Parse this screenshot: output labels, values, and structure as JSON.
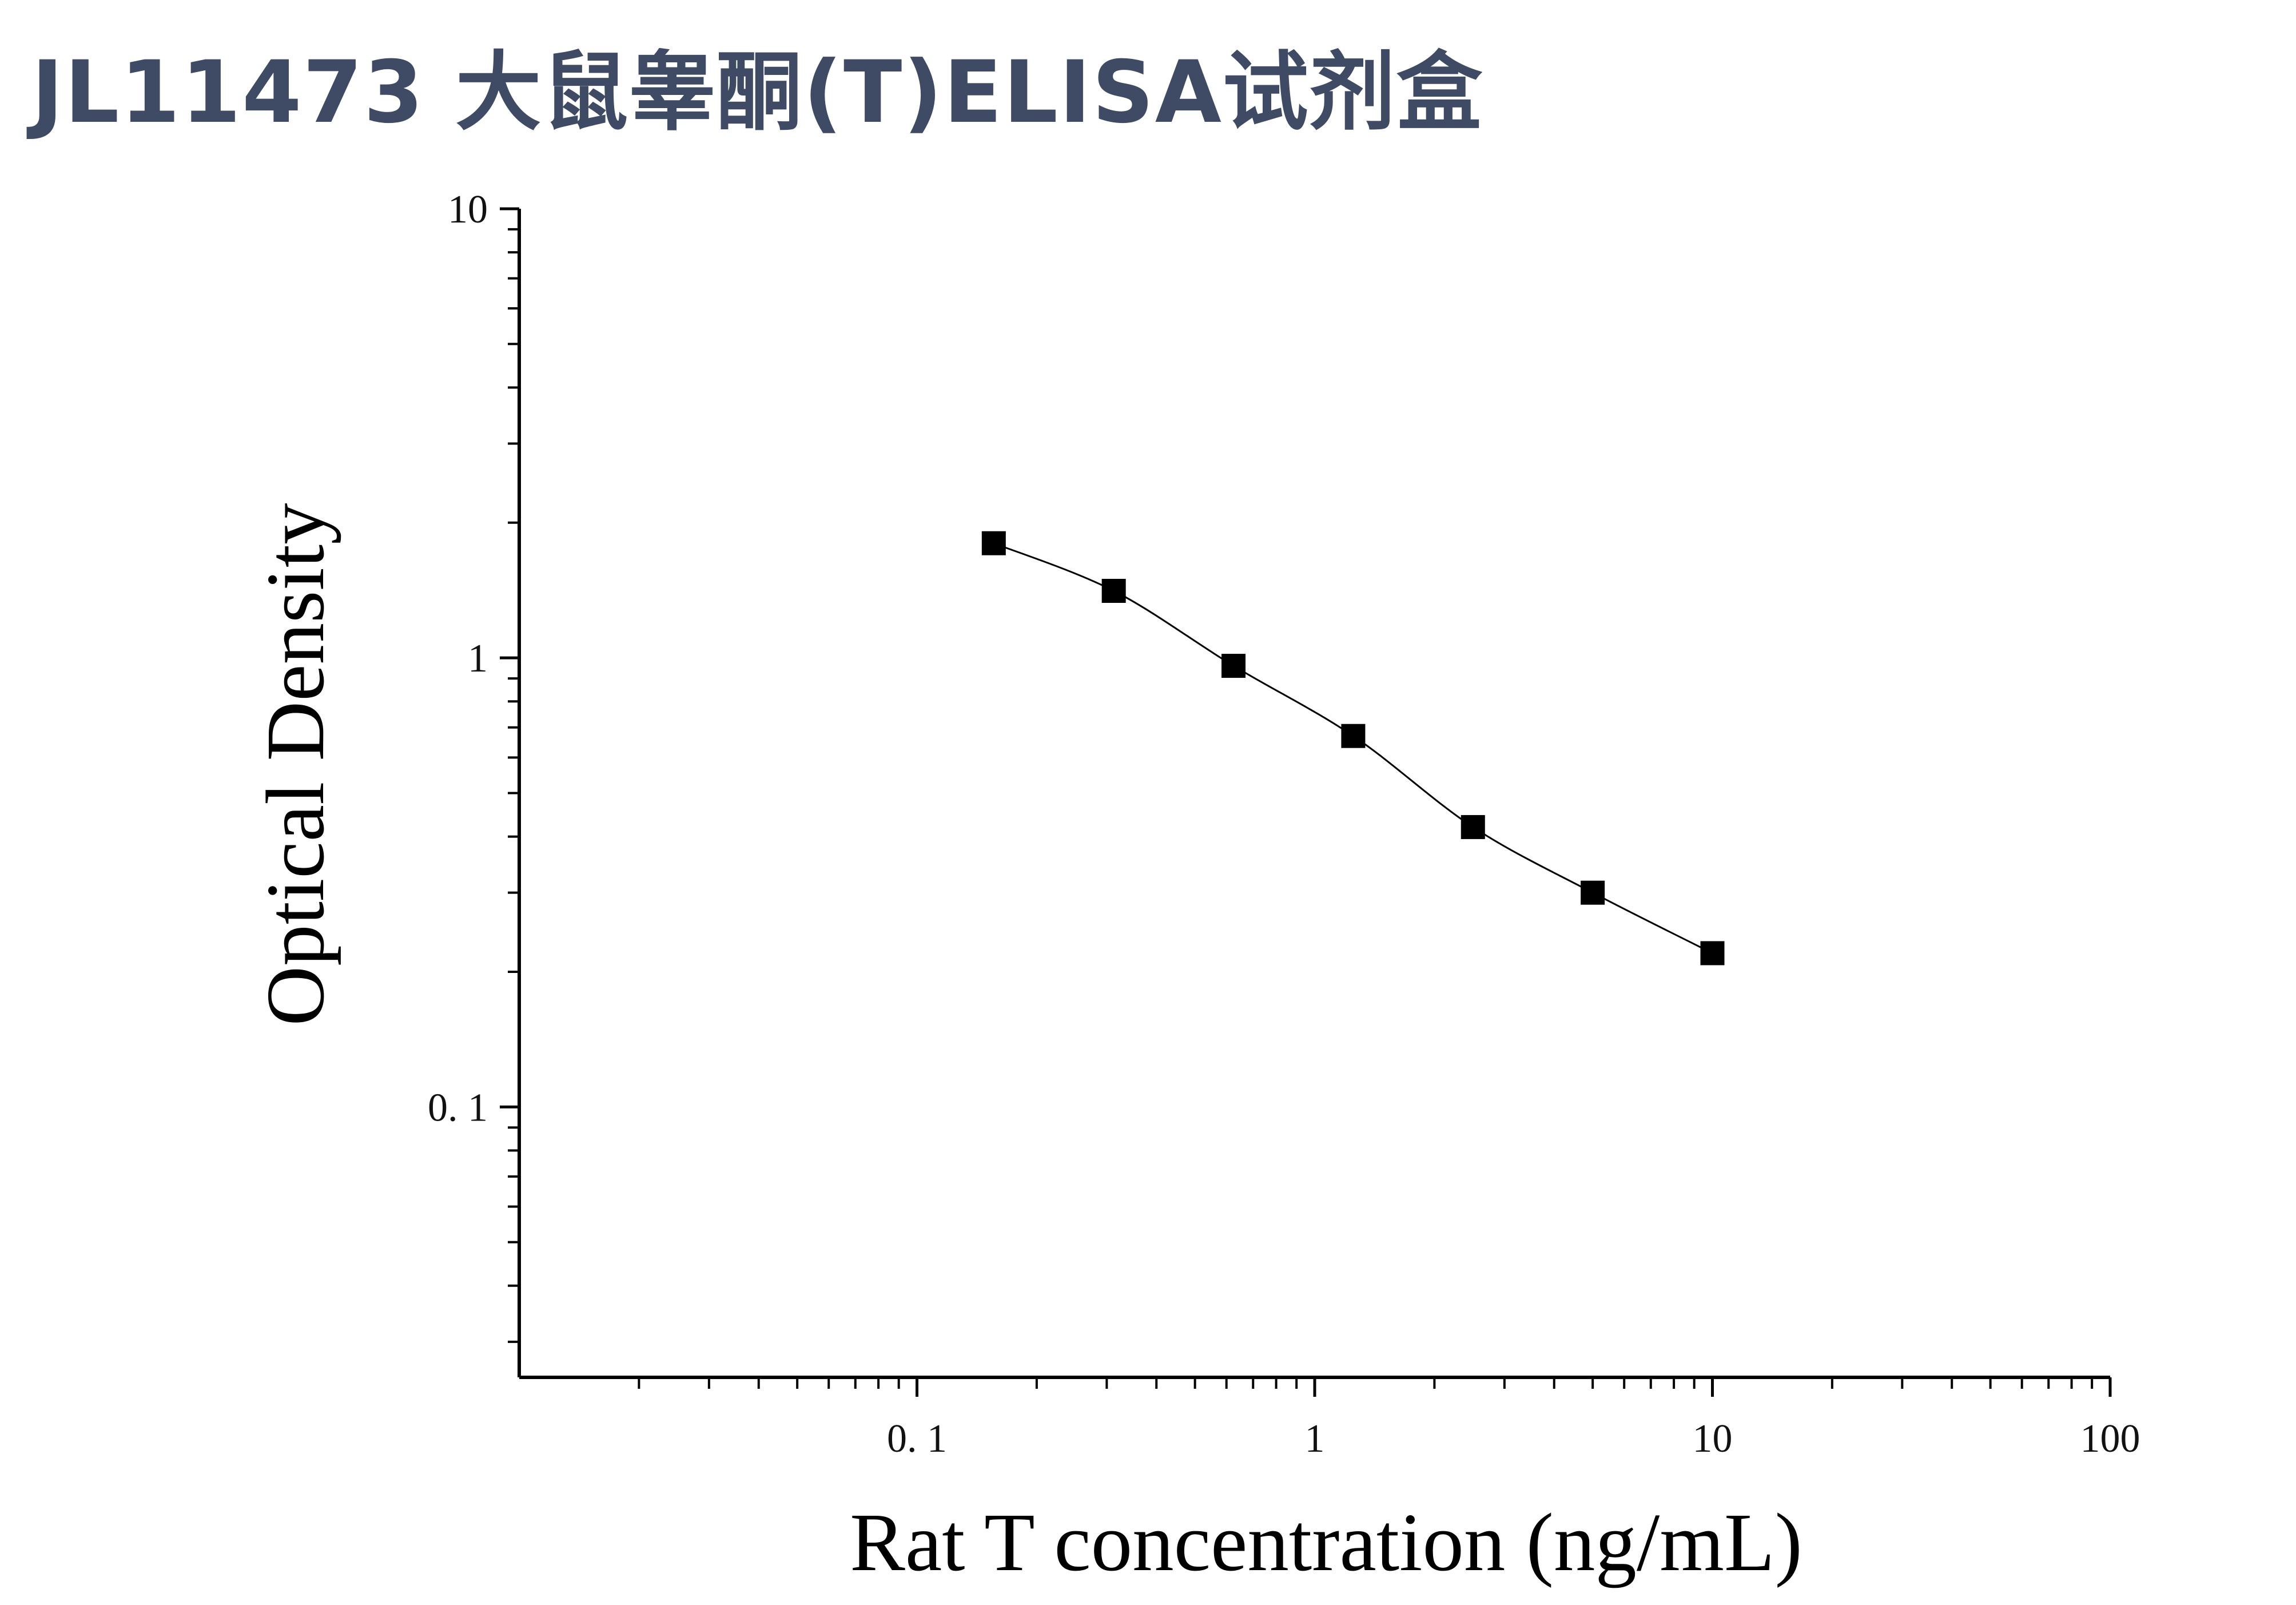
{
  "title": "JL11473 大鼠睾酮(T)ELISA试剂盒",
  "chart_data": {
    "type": "scatter",
    "xlabel": "Rat T concentration (ng/mL)",
    "ylabel": "Optical Density",
    "xscale": "log",
    "yscale": "log",
    "xlim": [
      0.01,
      100
    ],
    "ylim": [
      0.025,
      10
    ],
    "xticks": [
      0.1,
      1,
      10,
      100
    ],
    "xtick_labels": [
      "0. 1",
      "1",
      "10",
      "100"
    ],
    "yticks": [
      0.1,
      1,
      10
    ],
    "ytick_labels": [
      "0. 1",
      "1",
      "10"
    ],
    "grid": false,
    "legend": "none",
    "marker": "square",
    "fit_line": "smooth curve through points",
    "series": [
      {
        "x": [
          0.156,
          0.3125,
          0.625,
          1.25,
          2.5,
          5,
          10
        ],
        "y": [
          1.8,
          1.41,
          0.96,
          0.67,
          0.42,
          0.3,
          0.22
        ]
      }
    ],
    "colors": {
      "marker": "#000000",
      "line": "#000000",
      "axis": "#000000",
      "title": "#3f4b64"
    }
  }
}
